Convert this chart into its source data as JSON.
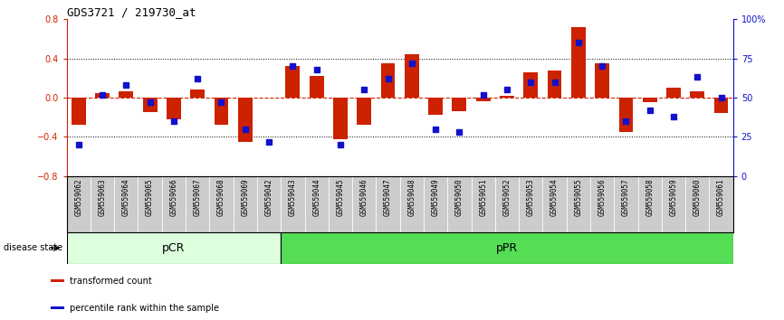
{
  "title": "GDS3721 / 219730_at",
  "samples": [
    "GSM559062",
    "GSM559063",
    "GSM559064",
    "GSM559065",
    "GSM559066",
    "GSM559067",
    "GSM559068",
    "GSM559069",
    "GSM559042",
    "GSM559043",
    "GSM559044",
    "GSM559045",
    "GSM559046",
    "GSM559047",
    "GSM559048",
    "GSM559049",
    "GSM559050",
    "GSM559051",
    "GSM559052",
    "GSM559053",
    "GSM559054",
    "GSM559055",
    "GSM559056",
    "GSM559057",
    "GSM559058",
    "GSM559059",
    "GSM559060",
    "GSM559061"
  ],
  "transformed_count": [
    -0.28,
    0.05,
    0.06,
    -0.15,
    -0.22,
    0.08,
    -0.28,
    -0.45,
    0.0,
    0.32,
    0.22,
    -0.42,
    -0.28,
    0.35,
    0.44,
    -0.18,
    -0.14,
    -0.04,
    0.02,
    0.26,
    0.28,
    0.72,
    0.35,
    -0.35,
    -0.05,
    0.1,
    0.06,
    -0.16
  ],
  "percentile_rank": [
    20,
    52,
    58,
    47,
    35,
    62,
    47,
    30,
    22,
    70,
    68,
    20,
    55,
    62,
    72,
    30,
    28,
    52,
    55,
    60,
    60,
    85,
    70,
    35,
    42,
    38,
    63,
    50
  ],
  "pcr_count": 9,
  "ppr_count": 19,
  "ylim_left": [
    -0.8,
    0.8
  ],
  "ylim_right": [
    0,
    100
  ],
  "yticks_left": [
    -0.8,
    -0.4,
    0.0,
    0.4,
    0.8
  ],
  "yticks_right": [
    0,
    25,
    50,
    75,
    100
  ],
  "ytick_labels_right": [
    "0",
    "25",
    "50",
    "75",
    "100%"
  ],
  "bar_color": "#CC2200",
  "dot_color": "#1111CC",
  "hline_color": "#CC2200",
  "grid_color": "black",
  "pcr_color": "#ddffdd",
  "ppr_color": "#55dd55",
  "pcr_label": "pCR",
  "ppr_label": "pPR",
  "disease_state_label": "disease state",
  "legend_bar_label": "transformed count",
  "legend_dot_label": "percentile rank within the sample",
  "bg_color": "white",
  "label_bg_color": "#cccccc",
  "border_color": "black"
}
